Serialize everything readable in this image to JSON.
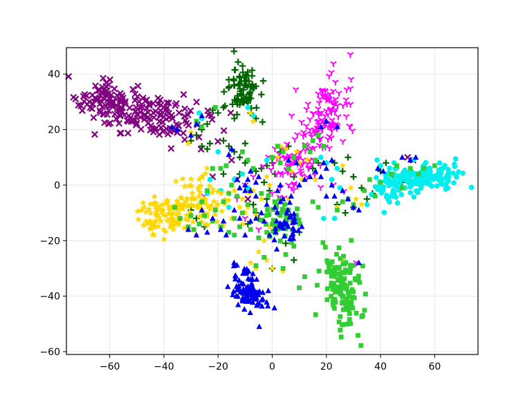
{
  "chart_data": {
    "type": "scatter",
    "title": "",
    "xlabel": "",
    "ylabel": "",
    "xlim": [
      -76,
      76
    ],
    "ylim": [
      -61,
      49.5
    ],
    "xticks": [
      -60,
      -40,
      -20,
      0,
      20,
      40,
      60
    ],
    "yticks": [
      -60,
      -40,
      -20,
      0,
      20,
      40
    ],
    "xtick_labels": [
      "−60",
      "−40",
      "−20",
      "0",
      "20",
      "40",
      "60"
    ],
    "ytick_labels": [
      "−60",
      "−40",
      "−20",
      "0",
      "20",
      "40"
    ],
    "grid": true,
    "legend": "none",
    "series": [
      {
        "marker": "x",
        "color": "#800080",
        "clusters": [
          {
            "cx": -48,
            "cy": 26,
            "sx": 11,
            "sy": 4,
            "n": 170,
            "rot": -0.22,
            "seed": 11
          },
          {
            "cx": -65,
            "cy": 31,
            "sx": 3,
            "sy": 2,
            "n": 35,
            "rot": 0,
            "seed": 12
          }
        ],
        "points": [
          [
            -22,
            3
          ],
          [
            -15,
            9
          ],
          [
            -9,
            -5
          ],
          [
            50,
            10
          ],
          [
            52,
            9
          ],
          [
            -13,
            2
          ]
        ]
      },
      {
        "marker": "plus",
        "color": "#006400",
        "clusters": [
          {
            "cx": -11,
            "cy": 35,
            "sx": 3,
            "sy": 5,
            "n": 75,
            "rot": 0,
            "seed": 21
          }
        ],
        "points": [
          [
            -18,
            28
          ],
          [
            -20,
            26
          ],
          [
            -22,
            27
          ],
          [
            -24,
            22
          ],
          [
            -26,
            20
          ],
          [
            -28,
            18
          ],
          [
            -23,
            15
          ],
          [
            -24,
            13
          ],
          [
            -18,
            16
          ],
          [
            -16,
            14
          ],
          [
            -14,
            12
          ],
          [
            -12,
            10
          ],
          [
            -10,
            8
          ],
          [
            -6,
            5
          ],
          [
            -4,
            6
          ],
          [
            -2,
            7
          ],
          [
            0,
            8
          ],
          [
            -3,
            1
          ],
          [
            -8,
            -2
          ],
          [
            -30,
            -9
          ],
          [
            -28,
            -12
          ],
          [
            -25,
            -15
          ],
          [
            -1,
            -2
          ],
          [
            -2,
            -5
          ],
          [
            -6,
            -10
          ],
          [
            -9,
            -14
          ],
          [
            10,
            -17
          ],
          [
            5,
            -21
          ],
          [
            8,
            -27
          ],
          [
            0,
            -30
          ],
          [
            15,
            6
          ],
          [
            17,
            8
          ],
          [
            23,
            8
          ],
          [
            26,
            5
          ],
          [
            28,
            10
          ],
          [
            30,
            3
          ],
          [
            33,
            -1
          ],
          [
            35,
            -5
          ],
          [
            37,
            -3
          ],
          [
            40,
            5
          ],
          [
            42,
            8
          ],
          [
            45,
            3
          ],
          [
            48,
            1
          ],
          [
            30,
            -8
          ],
          [
            27,
            -10
          ],
          [
            24,
            -7
          ],
          [
            -12,
            29
          ],
          [
            -8,
            26
          ],
          [
            -6,
            24
          ],
          [
            -14,
            24
          ],
          [
            -30,
            16
          ],
          [
            -26,
            14
          ],
          [
            -12,
            4
          ],
          [
            -18,
            4
          ],
          [
            -10,
            15
          ],
          [
            3,
            12
          ],
          [
            6,
            14
          ],
          [
            8,
            3
          ],
          [
            1,
            4
          ],
          [
            -7,
            -7
          ],
          [
            -5,
            -12
          ]
        ]
      },
      {
        "marker": "tri_down",
        "color": "#ff00ff",
        "clusters": [
          {
            "cx": 19,
            "cy": 24,
            "sx": 4,
            "sy": 8,
            "n": 130,
            "rot": -0.35,
            "seed": 31
          },
          {
            "cx": 8,
            "cy": 7,
            "sx": 5,
            "sy": 4,
            "n": 60,
            "rot": 0,
            "seed": 32
          }
        ],
        "points": [
          [
            -13,
            -5
          ],
          [
            -10,
            -12
          ],
          [
            -5,
            -16
          ],
          [
            0,
            -3
          ],
          [
            3,
            -1
          ],
          [
            6,
            0
          ],
          [
            31,
            -28
          ],
          [
            -25,
            -4
          ],
          [
            -10,
            0
          ],
          [
            -7,
            3
          ],
          [
            2,
            -10
          ]
        ]
      },
      {
        "marker": "circle",
        "color": "#00eeee",
        "clusters": [
          {
            "cx": 57,
            "cy": 3,
            "sx": 7,
            "sy": 2.5,
            "n": 140,
            "rot": 0.05,
            "seed": 41
          },
          {
            "cx": 44,
            "cy": 0,
            "sx": 4,
            "sy": 3,
            "n": 50,
            "rot": 0,
            "seed": 42
          }
        ],
        "points": [
          [
            -27,
            26
          ],
          [
            -26,
            24
          ],
          [
            -9,
            28
          ],
          [
            -7,
            25
          ],
          [
            -19,
            -2
          ],
          [
            -14,
            2
          ],
          [
            -11,
            4
          ],
          [
            -16,
            -8
          ],
          [
            -2,
            9
          ],
          [
            18,
            10
          ],
          [
            20,
            8
          ],
          [
            24,
            6
          ],
          [
            22,
            2
          ],
          [
            25,
            -1
          ],
          [
            23,
            -12
          ],
          [
            -9,
            -1
          ],
          [
            -20,
            12
          ],
          [
            19,
            -12
          ],
          [
            28,
            -31
          ],
          [
            35,
            -7
          ],
          [
            45,
            8
          ],
          [
            40,
            7
          ],
          [
            -24,
            -3
          ],
          [
            -23,
            2
          ]
        ]
      },
      {
        "marker": "star",
        "color": "#ffd700",
        "clusters": [
          {
            "cx": -40,
            "cy": -11,
            "sx": 5,
            "sy": 3.5,
            "n": 100,
            "rot": 0.15,
            "seed": 51
          },
          {
            "cx": -25,
            "cy": -6,
            "sx": 5,
            "sy": 5,
            "n": 80,
            "rot": 0,
            "seed": 52
          }
        ],
        "points": [
          [
            -14,
            -2
          ],
          [
            -11,
            -5
          ],
          [
            -9,
            -8
          ],
          [
            -6,
            -11
          ],
          [
            -3,
            -13
          ],
          [
            -1,
            -15
          ],
          [
            -3,
            -20
          ],
          [
            -5,
            -24
          ],
          [
            -8,
            -28
          ],
          [
            0,
            -30
          ],
          [
            4,
            -31
          ],
          [
            -6,
            -30
          ],
          [
            -2,
            -27
          ],
          [
            10,
            8
          ],
          [
            13,
            9
          ],
          [
            3,
            14
          ],
          [
            5,
            13
          ],
          [
            2,
            10
          ],
          [
            7,
            5
          ],
          [
            9,
            12
          ],
          [
            11,
            2
          ],
          [
            29,
            -1
          ],
          [
            31,
            -5
          ],
          [
            33,
            -7
          ],
          [
            24,
            -8
          ],
          [
            26,
            7
          ],
          [
            26,
            -27
          ],
          [
            -7,
            23
          ],
          [
            -8,
            26
          ],
          [
            -30,
            19
          ],
          [
            -31,
            15
          ],
          [
            -28,
            -18
          ],
          [
            -12,
            -8
          ],
          [
            -15,
            -12
          ],
          [
            -4,
            -5
          ],
          [
            -7,
            -2
          ],
          [
            6,
            -5
          ],
          [
            -2,
            3
          ],
          [
            -1,
            0
          ],
          [
            16,
            2
          ],
          [
            -10,
            -10
          ],
          [
            -11,
            -14
          ]
        ]
      },
      {
        "marker": "square",
        "color": "#32cd32",
        "clusters": [
          {
            "cx": 25,
            "cy": -37,
            "sx": 4,
            "sy": 7,
            "n": 140,
            "rot": 0.18,
            "seed": 61
          },
          {
            "cx": 2,
            "cy": -12,
            "sx": 4,
            "sy": 5,
            "n": 45,
            "rot": 0,
            "seed": 62
          }
        ],
        "points": [
          [
            -36,
            -8
          ],
          [
            -34,
            -12
          ],
          [
            -31,
            -15
          ],
          [
            -30,
            -11
          ],
          [
            -27,
            -14
          ],
          [
            -25,
            -11
          ],
          [
            -22,
            -13
          ],
          [
            -19,
            -15
          ],
          [
            -16,
            -17
          ],
          [
            -14,
            -12
          ],
          [
            -11,
            -10
          ],
          [
            -9,
            -7
          ],
          [
            -13,
            -4
          ],
          [
            -16,
            -3
          ],
          [
            -18,
            -6
          ],
          [
            -21,
            -9
          ],
          [
            -15,
            0
          ],
          [
            -17,
            7
          ],
          [
            -19,
            6
          ],
          [
            -22,
            6
          ],
          [
            -12,
            -15
          ],
          [
            -14,
            -18
          ],
          [
            -8,
            -16
          ],
          [
            -5,
            -19
          ],
          [
            4,
            12
          ],
          [
            2,
            14
          ],
          [
            0,
            10
          ],
          [
            3,
            8
          ],
          [
            6,
            6
          ],
          [
            8,
            10
          ],
          [
            12,
            14
          ],
          [
            15,
            16
          ],
          [
            17,
            18
          ],
          [
            16,
            9
          ],
          [
            19,
            14
          ],
          [
            14,
            12
          ],
          [
            30,
            -7
          ],
          [
            28,
            -5
          ],
          [
            26,
            -6
          ],
          [
            24,
            -9
          ],
          [
            34,
            -2
          ],
          [
            36,
            2
          ],
          [
            38,
            -4
          ],
          [
            44,
            4
          ],
          [
            46,
            7
          ],
          [
            40,
            1
          ],
          [
            48,
            -1
          ],
          [
            51,
            6
          ],
          [
            54,
            4
          ],
          [
            56,
            6
          ],
          [
            60,
            7
          ],
          [
            -26,
            21
          ],
          [
            -21,
            28
          ],
          [
            -28,
            23
          ],
          [
            -6,
            -29
          ],
          [
            -3,
            -26
          ],
          [
            5,
            -25
          ],
          [
            10,
            -37
          ],
          [
            12,
            -33
          ],
          [
            15,
            -6
          ],
          [
            17,
            -8
          ],
          [
            7,
            -19
          ],
          [
            8,
            -22
          ],
          [
            -9,
            9
          ],
          [
            -7,
            6
          ],
          [
            -11,
            12
          ],
          [
            -24,
            -2
          ],
          [
            -26,
            -6
          ],
          [
            -29,
            -16
          ],
          [
            4,
            -30
          ],
          [
            -2,
            -17
          ],
          [
            -4,
            -3
          ],
          [
            1,
            -6
          ],
          [
            6,
            -9
          ],
          [
            9,
            -11
          ]
        ]
      },
      {
        "marker": "triangle",
        "color": "#0000ee",
        "clusters": [
          {
            "cx": -9,
            "cy": -38,
            "sx": 3,
            "sy": 4.5,
            "n": 90,
            "rot": 0.4,
            "seed": 71
          },
          {
            "cx": 5,
            "cy": -15,
            "sx": 3,
            "sy": 4,
            "n": 35,
            "rot": 0,
            "seed": 72
          }
        ],
        "points": [
          [
            -37,
            21
          ],
          [
            -35,
            20
          ],
          [
            -28,
            22
          ],
          [
            -26,
            25
          ],
          [
            -30,
            18
          ],
          [
            -15,
            13
          ],
          [
            -16,
            11
          ],
          [
            -12,
            -1
          ],
          [
            -10,
            0
          ],
          [
            -8,
            -2
          ],
          [
            -6,
            -4
          ],
          [
            -13,
            2
          ],
          [
            -9,
            2
          ],
          [
            -10,
            -2
          ],
          [
            -8,
            5
          ],
          [
            -5,
            3
          ],
          [
            -19,
            -16
          ],
          [
            -17,
            -18
          ],
          [
            -24,
            -17
          ],
          [
            -28,
            -18
          ],
          [
            -31,
            -16
          ],
          [
            -14,
            -9
          ],
          [
            -12,
            -12
          ],
          [
            -18,
            -13
          ],
          [
            -22,
            -12
          ],
          [
            -26,
            -9
          ],
          [
            -10,
            -18
          ],
          [
            -8,
            -13
          ],
          [
            -6,
            -12
          ],
          [
            -3,
            -13
          ],
          [
            -1,
            -18
          ],
          [
            1,
            -8
          ],
          [
            3,
            -6
          ],
          [
            2,
            -2
          ],
          [
            4,
            -5
          ],
          [
            7,
            -4
          ],
          [
            10,
            0
          ],
          [
            12,
            2
          ],
          [
            14,
            3
          ],
          [
            16,
            5
          ],
          [
            19,
            8
          ],
          [
            20,
            6
          ],
          [
            18,
            3
          ],
          [
            20,
            -4
          ],
          [
            22,
            0
          ],
          [
            22,
            9
          ],
          [
            18,
            21
          ],
          [
            20,
            23
          ],
          [
            24,
            21
          ],
          [
            23,
            -4
          ],
          [
            26,
            -2
          ],
          [
            28,
            -5
          ],
          [
            30,
            -8
          ],
          [
            32,
            -9
          ],
          [
            39,
            6
          ],
          [
            41,
            5
          ],
          [
            51,
            9
          ],
          [
            53,
            10
          ],
          [
            48,
            10
          ],
          [
            32,
            -28
          ],
          [
            -6,
            1
          ],
          [
            6,
            9
          ],
          [
            9,
            8
          ],
          [
            3,
            0
          ],
          [
            -2,
            -7
          ],
          [
            -4,
            -10
          ]
        ]
      }
    ]
  }
}
